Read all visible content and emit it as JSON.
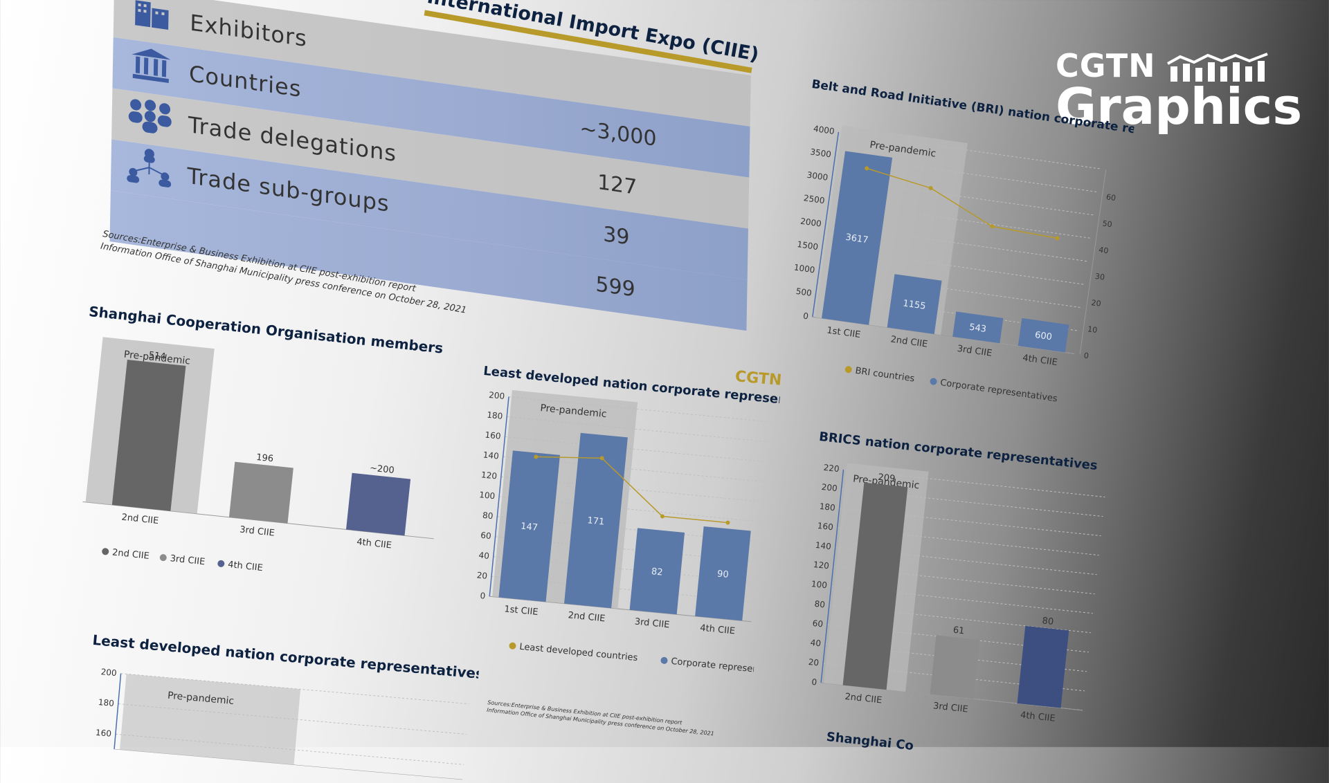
{
  "brand": {
    "line1": "CGTN",
    "line2": "Graphics",
    "watermark": "CGTN"
  },
  "ciie": {
    "header": "International Import Expo (CIIE)",
    "rows": [
      {
        "label": "Exhibitors",
        "value": "",
        "icon": "building-icon"
      },
      {
        "label": "Countries",
        "value": "~3,000",
        "icon": "government-building-icon"
      },
      {
        "label": "Trade delegations",
        "value": "127",
        "icon": "people-group-icon"
      },
      {
        "label": "Trade sub-groups",
        "value": "39",
        "icon": "network-people-icon"
      },
      {
        "label": "",
        "value": "599",
        "icon": ""
      }
    ],
    "sources": [
      "Sources:Enterprise & Business Exhibition at CIIE post-exhibition report",
      "Information Office of Shanghai Municipality press conference on October 28, 2021"
    ]
  },
  "small_sources": [
    "Sources:Enterprise & Business Exhibition at CIIE post-exhibition report",
    "Information Office of Shanghai Municipality press conference on October 28, 2021"
  ],
  "colors": {
    "navy": "#0d2240",
    "gold": "#b79a2a",
    "steel": "#587499",
    "dark_grey": "#666666",
    "mid_grey": "#8c8c8c",
    "deep_blue": "#55628f",
    "bar_blue": "#5a78a8"
  },
  "chart_data": [
    {
      "id": "sco",
      "type": "bar",
      "title": "Shanghai Cooperation Organisation members",
      "categories": [
        "2nd CIIE",
        "3rd CIIE",
        "4th CIIE"
      ],
      "values": [
        514,
        196,
        200
      ],
      "labels": [
        "514",
        "196",
        "~200"
      ],
      "colors": [
        "#666666",
        "#8c8c8c",
        "#55628f"
      ],
      "band_label": "Pre-pandemic",
      "legend": [
        "2nd CIIE",
        "3rd CIIE",
        "4th CIIE"
      ],
      "ylim": [
        0,
        560
      ]
    },
    {
      "id": "ldc",
      "type": "bar",
      "title": "Least developed nation corporate representatives",
      "categories": [
        "1st CIIE",
        "2nd CIIE",
        "3rd CIIE",
        "4th CIIE"
      ],
      "series": [
        {
          "name": "Corporate representatives",
          "values": [
            147,
            171,
            82,
            90
          ]
        },
        {
          "name": "Least developed countries",
          "values": [
            143,
            148,
            96,
            96
          ]
        }
      ],
      "yticks": [
        0,
        20,
        40,
        60,
        80,
        100,
        120,
        140,
        160,
        180,
        200
      ],
      "band_label": "Pre-pandemic",
      "legend": [
        "Least developed countries",
        "Corporate representatives"
      ],
      "ylim": [
        0,
        200
      ]
    },
    {
      "id": "bri",
      "type": "bar",
      "title": "Belt and Road Initiative (BRI) nation corporate representatives",
      "categories": [
        "1st CIIE",
        "2nd CIIE",
        "3rd CIIE",
        "4th CIIE"
      ],
      "series": [
        {
          "name": "Corporate representatives",
          "values": [
            3617,
            1155,
            543,
            600
          ]
        },
        {
          "name": "BRI countries",
          "values": [
            58,
            54,
            43,
            42
          ]
        }
      ],
      "yticks": [
        0,
        500,
        1000,
        1500,
        2000,
        2500,
        3000,
        3500,
        4000
      ],
      "y2ticks": [
        0,
        10,
        20,
        30,
        40,
        50,
        60
      ],
      "band_label": "Pre-pandemic",
      "legend": [
        "BRI countries",
        "Corporate representatives"
      ],
      "ylim": [
        0,
        4000
      ]
    },
    {
      "id": "brics",
      "type": "bar",
      "title": "BRICS nation corporate representatives",
      "categories": [
        "2nd CIIE",
        "3rd CIIE",
        "4th CIIE"
      ],
      "values": [
        209,
        61,
        80
      ],
      "colors": [
        "#666666",
        "#8c8c8c",
        "#3c4f80"
      ],
      "yticks": [
        0,
        20,
        40,
        60,
        80,
        100,
        120,
        140,
        160,
        180,
        200,
        220
      ],
      "band_label": "Pre-pandemic",
      "ylim": [
        0,
        220
      ]
    },
    {
      "id": "ldc2",
      "type": "bar",
      "title": "Least developed nation corporate representatives",
      "categories": [],
      "yticks": [
        160,
        180,
        200
      ],
      "band_label": "Pre-pandemic",
      "ylim": [
        150,
        200
      ]
    }
  ],
  "partial_title": "Shanghai Co"
}
